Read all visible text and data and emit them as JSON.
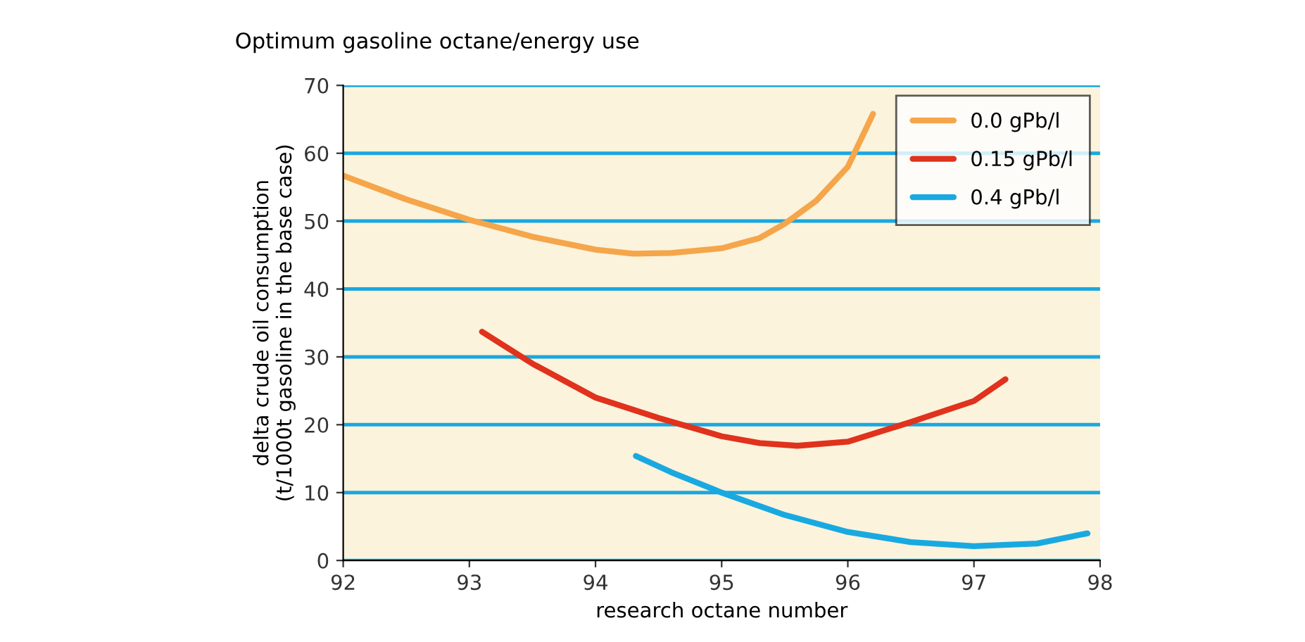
{
  "chart_data": {
    "type": "line",
    "title": "Optimum gasoline octane/energy use",
    "xlabel": "research octane number",
    "ylabel": "delta crude oil consumption\n(t/1000t gasoline in the base case)",
    "xlim": [
      92,
      98
    ],
    "xticks": [
      92,
      93,
      94,
      95,
      96,
      97,
      98
    ],
    "ylim": [
      0,
      70
    ],
    "yticks": [
      0,
      10,
      20,
      30,
      40,
      50,
      60,
      70
    ],
    "grid": "y",
    "legend": "top right",
    "marker": "none",
    "line_style": "solid",
    "series": [
      {
        "name": "0.0 gPb/l",
        "color": "#f5a54a",
        "x": [
          92,
          92.5,
          93,
          93.5,
          94,
          94.3,
          94.6,
          95,
          95.3,
          95.5,
          95.75,
          96,
          96.2
        ],
        "values": [
          56.7,
          53.2,
          50.2,
          47.7,
          45.8,
          45.2,
          45.3,
          46,
          47.5,
          49.6,
          53,
          58,
          65.8
        ]
      },
      {
        "name": "0.15 gPb/l",
        "color": "#e0321c",
        "x": [
          93.1,
          93.5,
          94,
          94.5,
          95,
          95.3,
          95.6,
          96,
          96.5,
          97,
          97.25
        ],
        "values": [
          33.7,
          29,
          24,
          21,
          18.3,
          17.3,
          16.9,
          17.5,
          20.4,
          23.5,
          26.7
        ]
      },
      {
        "name": "0.4 gPb/l",
        "color": "#19a9e1",
        "x": [
          94.32,
          94.6,
          95,
          95.5,
          96,
          96.5,
          97,
          97.5,
          97.9
        ],
        "values": [
          15.4,
          13,
          10,
          6.7,
          4.2,
          2.7,
          2.1,
          2.5,
          4
        ]
      }
    ]
  }
}
